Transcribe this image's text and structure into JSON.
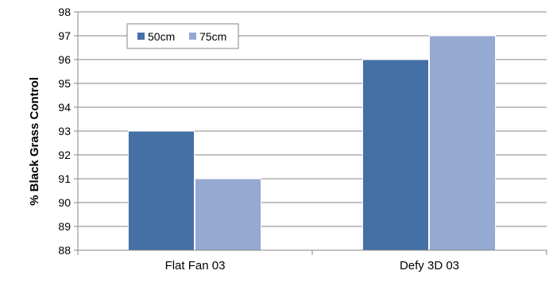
{
  "chart_data": {
    "type": "bar",
    "title": "",
    "xlabel": "",
    "ylabel": "% Black Grass Control",
    "categories": [
      "Flat Fan 03",
      "Defy 3D 03"
    ],
    "series": [
      {
        "name": "50cm",
        "values": [
          93,
          96
        ],
        "color": "#4470a6"
      },
      {
        "name": "75cm",
        "values": [
          91,
          97
        ],
        "color": "#95a9d1"
      }
    ],
    "ylim": [
      88,
      98
    ],
    "yticks": [
      88,
      89,
      90,
      91,
      92,
      93,
      94,
      95,
      96,
      97,
      98
    ],
    "grid": true,
    "legend_position": "top-left"
  }
}
